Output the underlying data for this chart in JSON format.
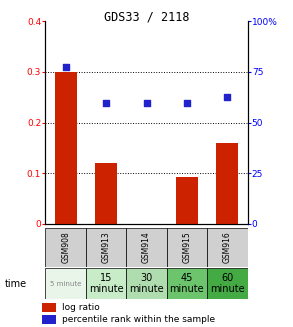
{
  "title": "GDS33 / 2118",
  "samples": [
    "GSM908",
    "GSM913",
    "GSM914",
    "GSM915",
    "GSM916"
  ],
  "time_labels_top": [
    "5 minute",
    "15\nminute",
    "30\nminute",
    "45\nminute",
    "60\nminute"
  ],
  "time_labels_small": [
    "5 minute",
    "",
    "",
    "",
    ""
  ],
  "time_colors": [
    "#e8f5e8",
    "#c8ecc8",
    "#b0ddb0",
    "#6cc46c",
    "#44aa44"
  ],
  "log_ratio": [
    0.3,
    0.12,
    0.0,
    0.093,
    0.16
  ],
  "percentile_rank_pct": [
    77.5,
    59.5,
    59.5,
    59.5,
    62.5
  ],
  "bar_color": "#cc2200",
  "dot_color": "#2222cc",
  "ylim_left": [
    0.0,
    0.4
  ],
  "ylim_right": [
    0.0,
    100.0
  ],
  "yticks_left": [
    0.0,
    0.1,
    0.2,
    0.3,
    0.4
  ],
  "ytick_labels_left": [
    "0",
    "0.1",
    "0.2",
    "0.3",
    "0.4"
  ],
  "yticks_right": [
    0,
    25,
    50,
    75,
    100
  ],
  "ytick_labels_right": [
    "0",
    "25",
    "50",
    "75",
    "100%"
  ],
  "legend_log": "log ratio",
  "legend_pct": "percentile rank within the sample",
  "time_label": "time",
  "gsm_row_color": "#d0d0d0",
  "title_fontsize": 8.5
}
